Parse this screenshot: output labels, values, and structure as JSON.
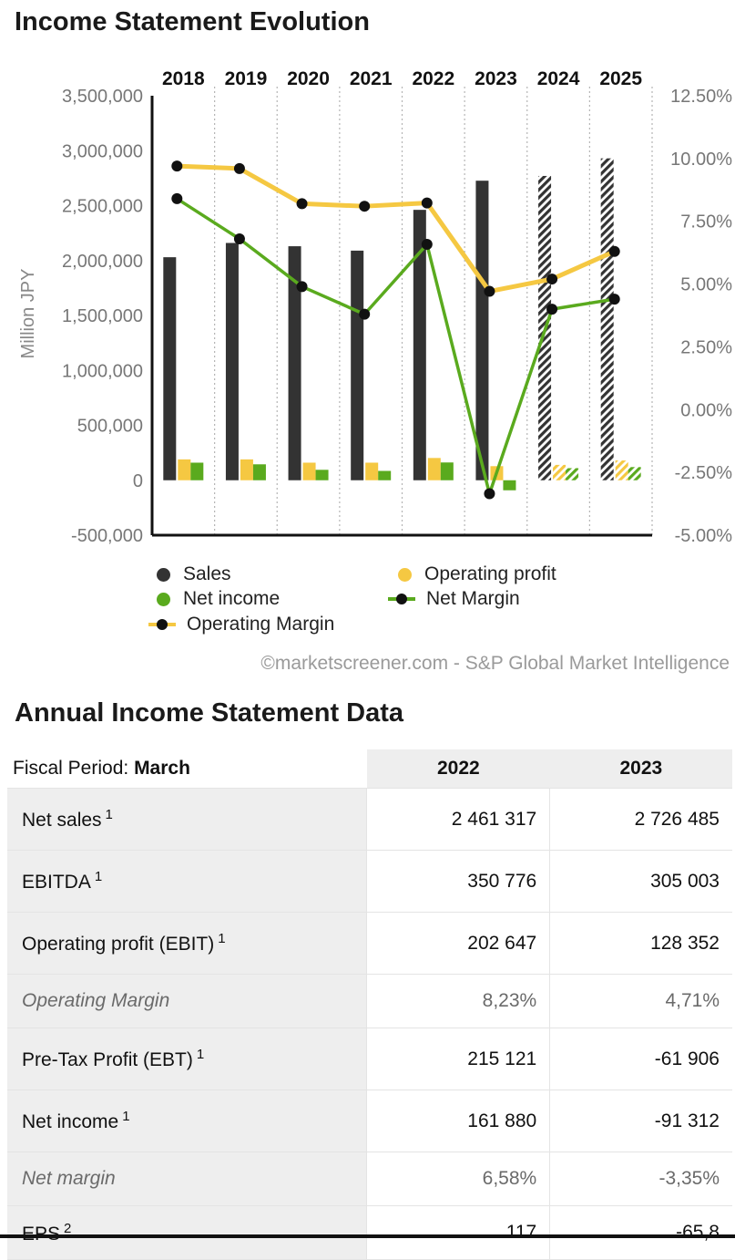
{
  "page": {
    "title": "Income Statement Evolution",
    "credit": "©marketscreener.com - S&P Global Market Intelligence",
    "table_title": "Annual Income Statement Data"
  },
  "chart_data": {
    "type": "bar",
    "categories": [
      "2018",
      "2019",
      "2020",
      "2021",
      "2022",
      "2023",
      "2024",
      "2025"
    ],
    "estimated_from_index": 6,
    "ylabel": "Million JPY",
    "ylim": [
      -500000,
      3500000
    ],
    "yticks": [
      3500000,
      3000000,
      2500000,
      2000000,
      1500000,
      1000000,
      500000,
      0,
      -500000
    ],
    "ytick_labels": [
      "3,500,000",
      "3,000,000",
      "2,500,000",
      "2,000,000",
      "1,500,000",
      "1,000,000",
      "500,000",
      "0",
      "-500,000"
    ],
    "y2lim": [
      -5.0,
      12.5
    ],
    "y2ticks": [
      12.5,
      10.0,
      7.5,
      5.0,
      2.5,
      0.0,
      -2.5,
      -5.0
    ],
    "y2tick_labels": [
      "12.50%",
      "10.00%",
      "7.50%",
      "5.00%",
      "2.50%",
      "0.00%",
      "-2.50%",
      "-5.00%"
    ],
    "series": [
      {
        "name": "Sales",
        "type": "bar",
        "axis": "left",
        "color": "#333333",
        "values": [
          2030000,
          2160000,
          2130000,
          2090000,
          2461317,
          2726485,
          2770000,
          2930000
        ]
      },
      {
        "name": "Operating profit",
        "type": "bar",
        "axis": "left",
        "color": "#f5c842",
        "values": [
          190000,
          190000,
          160000,
          160000,
          202647,
          128352,
          140000,
          180000
        ]
      },
      {
        "name": "Net income",
        "type": "bar",
        "axis": "left",
        "color": "#5aaa1e",
        "values": [
          160000,
          145000,
          95000,
          85000,
          161880,
          -91312,
          110000,
          120000
        ]
      },
      {
        "name": "Net Margin",
        "type": "line",
        "axis": "right",
        "color": "#5aaa1e",
        "values": [
          8.4,
          6.8,
          4.9,
          3.8,
          6.58,
          -3.35,
          4.0,
          4.4
        ]
      },
      {
        "name": "Operating Margin",
        "type": "line",
        "axis": "right",
        "color": "#f5c842",
        "values": [
          9.7,
          9.6,
          8.2,
          8.1,
          8.23,
          4.71,
          5.2,
          6.3
        ]
      }
    ],
    "grid": "vertical dotted",
    "legend": "bottom"
  },
  "legend": {
    "sales": "Sales",
    "operating_profit": "Operating profit",
    "net_income": "Net income",
    "net_margin": "Net Margin",
    "operating_margin": "Operating Margin"
  },
  "table": {
    "period_label": "Fiscal Period:",
    "period_value": "March",
    "years": [
      "2022",
      "2023"
    ],
    "rows": [
      {
        "label": "Net sales",
        "sup": "1",
        "values": [
          "2 461 317",
          "2 726 485"
        ]
      },
      {
        "label": "EBITDA",
        "sup": "1",
        "values": [
          "350 776",
          "305 003"
        ]
      },
      {
        "label": "Operating profit (EBIT)",
        "sup": "1",
        "values": [
          "202 647",
          "128 352"
        ]
      },
      {
        "label": "Operating Margin",
        "sup": "",
        "values": [
          "8,23%",
          "4,71%"
        ]
      },
      {
        "label": "Pre-Tax Profit (EBT)",
        "sup": "1",
        "values": [
          "215 121",
          "-61 906"
        ]
      },
      {
        "label": "Net income",
        "sup": "1",
        "values": [
          "161 880",
          "-91 312"
        ]
      },
      {
        "label": "Net margin",
        "sup": "",
        "values": [
          "6,58%",
          "-3,35%"
        ]
      },
      {
        "label": "EPS",
        "sup": "2",
        "values": [
          "117",
          "-65,8"
        ]
      }
    ]
  }
}
